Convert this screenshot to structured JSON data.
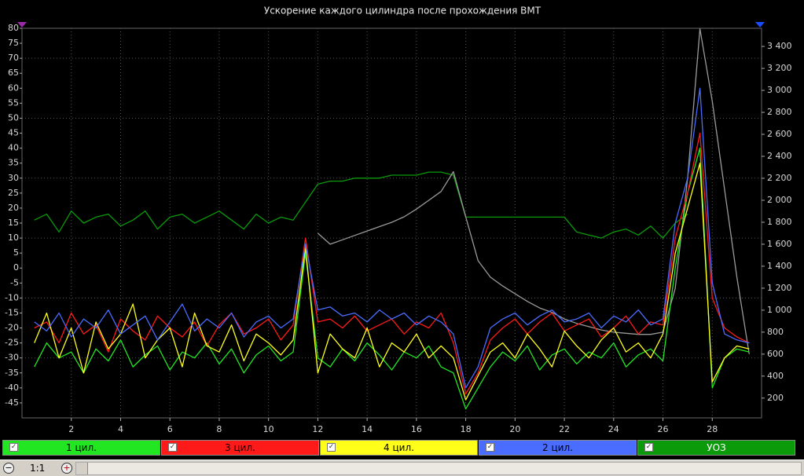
{
  "chart_data": {
    "type": "line",
    "title": "Ускорение каждого цилиндра после прохождения ВМТ",
    "x": [
      0.5,
      1,
      1.5,
      2,
      2.5,
      3,
      3.5,
      4,
      4.5,
      5,
      5.5,
      6,
      6.5,
      7,
      7.5,
      8,
      8.5,
      9,
      9.5,
      10,
      10.5,
      11,
      11.5,
      12,
      12.5,
      13,
      13.5,
      14,
      14.5,
      15,
      15.5,
      16,
      16.5,
      17,
      17.5,
      18,
      18.5,
      19,
      19.5,
      20,
      20.5,
      21,
      21.5,
      22,
      22.5,
      23,
      23.5,
      24,
      24.5,
      25,
      25.5,
      26,
      26.5,
      27,
      27.5,
      28,
      28.5,
      29,
      29.5
    ],
    "xlim": [
      0,
      30
    ],
    "xticks": [
      2,
      4,
      6,
      8,
      10,
      12,
      14,
      16,
      18,
      20,
      22,
      24,
      26,
      28
    ],
    "ylim": [
      -50,
      80
    ],
    "yticks": [
      -45,
      -40,
      -35,
      -30,
      -25,
      -20,
      -15,
      -10,
      -5,
      0,
      5,
      10,
      15,
      20,
      25,
      30,
      35,
      40,
      45,
      50,
      55,
      60,
      65,
      70,
      75,
      80
    ],
    "y2lim": [
      20,
      3565
    ],
    "y2ticks": [
      200,
      400,
      600,
      800,
      {
        "value": 1000,
        "label": "1 000"
      },
      {
        "value": 1200,
        "label": "1 200"
      },
      {
        "value": 1400,
        "label": "1 400"
      },
      {
        "value": 1600,
        "label": "1 600"
      },
      {
        "value": 1800,
        "label": "1 800"
      },
      {
        "value": 2000,
        "label": "2 000"
      },
      {
        "value": 2200,
        "label": "2 200"
      },
      {
        "value": 2400,
        "label": "2 400"
      },
      {
        "value": 2600,
        "label": "2 600"
      },
      {
        "value": 2800,
        "label": "2 800"
      },
      {
        "value": 3000,
        "label": "3 000"
      },
      {
        "value": 3200,
        "label": "3 200"
      },
      {
        "value": 3400,
        "label": "3 400"
      }
    ],
    "grid": true,
    "series": [
      {
        "name": "1 цил.",
        "color": "#22e622",
        "values": [
          -33,
          -25,
          -30,
          -28,
          -35,
          -27,
          -31,
          -24,
          -33,
          -29,
          -26,
          -34,
          -28,
          -30,
          -25,
          -32,
          -27,
          -35,
          -29,
          -26,
          -31,
          -28,
          5,
          -30,
          -33,
          -27,
          -31,
          -25,
          -29,
          -34,
          -28,
          -30,
          -26,
          -33,
          -35,
          -47,
          -40,
          -33,
          -28,
          -31,
          -26,
          -34,
          -29,
          -27,
          -32,
          -28,
          -30,
          -25,
          -33,
          -29,
          -27,
          -31,
          0,
          25,
          40,
          -40,
          -30,
          -27,
          -28
        ]
      },
      {
        "name": "3 цил.",
        "color": "#ff1a1a",
        "values": [
          -20,
          -18,
          -25,
          -15,
          -22,
          -19,
          -28,
          -17,
          -21,
          -24,
          -16,
          -20,
          -23,
          -18,
          -26,
          -19,
          -15,
          -22,
          -20,
          -17,
          -24,
          -19,
          10,
          -18,
          -17,
          -20,
          -16,
          -21,
          -19,
          -17,
          -22,
          -18,
          -20,
          -15,
          -25,
          -42,
          -35,
          -24,
          -20,
          -17,
          -22,
          -18,
          -15,
          -21,
          -19,
          -17,
          -23,
          -20,
          -16,
          -22,
          -18,
          -19,
          10,
          25,
          45,
          -10,
          -20,
          -23,
          -25
        ]
      },
      {
        "name": "4 цил.",
        "color": "#ffff1a",
        "values": [
          -25,
          -15,
          -30,
          -20,
          -35,
          -18,
          -27,
          -22,
          -12,
          -30,
          -24,
          -20,
          -33,
          -15,
          -26,
          -28,
          -19,
          -31,
          -22,
          -25,
          -29,
          -24,
          7,
          -35,
          -22,
          -27,
          -30,
          -20,
          -33,
          -25,
          -28,
          -22,
          -30,
          -26,
          -30,
          -44,
          -36,
          -28,
          -25,
          -30,
          -22,
          -27,
          -33,
          -21,
          -26,
          -30,
          -24,
          -20,
          -28,
          -25,
          -30,
          -22,
          5,
          20,
          35,
          -38,
          -30,
          -26,
          -27
        ]
      },
      {
        "name": "2 цил.",
        "color": "#4a6cff",
        "values": [
          -18,
          -21,
          -15,
          -23,
          -17,
          -20,
          -14,
          -22,
          -19,
          -16,
          -24,
          -18,
          -12,
          -21,
          -17,
          -20,
          -15,
          -23,
          -18,
          -16,
          -20,
          -17,
          8,
          -14,
          -13,
          -16,
          -15,
          -18,
          -14,
          -17,
          -15,
          -19,
          -16,
          -18,
          -22,
          -40,
          -33,
          -20,
          -17,
          -15,
          -19,
          -16,
          -14,
          -18,
          -17,
          -15,
          -20,
          -16,
          -18,
          -14,
          -19,
          -17,
          15,
          30,
          60,
          -5,
          -22,
          -24,
          -25
        ]
      },
      {
        "name": "УОЗ",
        "color": "#0a9a0a",
        "values": [
          16,
          18,
          12,
          19,
          15,
          17,
          18,
          14,
          16,
          19,
          13,
          17,
          18,
          15,
          17,
          19,
          16,
          13,
          18,
          15,
          17,
          16,
          22,
          28,
          29,
          29,
          30,
          30,
          30,
          31,
          31,
          31,
          32,
          32,
          31,
          17,
          17,
          17,
          17,
          17,
          17,
          17,
          17,
          17,
          12,
          11,
          10,
          12,
          13,
          11,
          14,
          10,
          15,
          18,
          null,
          null,
          null,
          null,
          null
        ]
      },
      {
        "color": "#9a9a9a",
        "axis": "y2",
        "values": [
          null,
          null,
          null,
          null,
          null,
          null,
          null,
          null,
          null,
          null,
          null,
          null,
          null,
          null,
          null,
          null,
          null,
          null,
          null,
          null,
          null,
          null,
          null,
          1700,
          1600,
          1640,
          1680,
          1720,
          1760,
          1800,
          1850,
          1920,
          2000,
          2080,
          2260,
          1850,
          1450,
          1300,
          1220,
          1150,
          1080,
          1020,
          980,
          920,
          880,
          850,
          820,
          800,
          790,
          780,
          780,
          800,
          1200,
          2200,
          3560,
          2900,
          2100,
          1300,
          600
        ]
      }
    ]
  },
  "zoom_label": "1:1"
}
